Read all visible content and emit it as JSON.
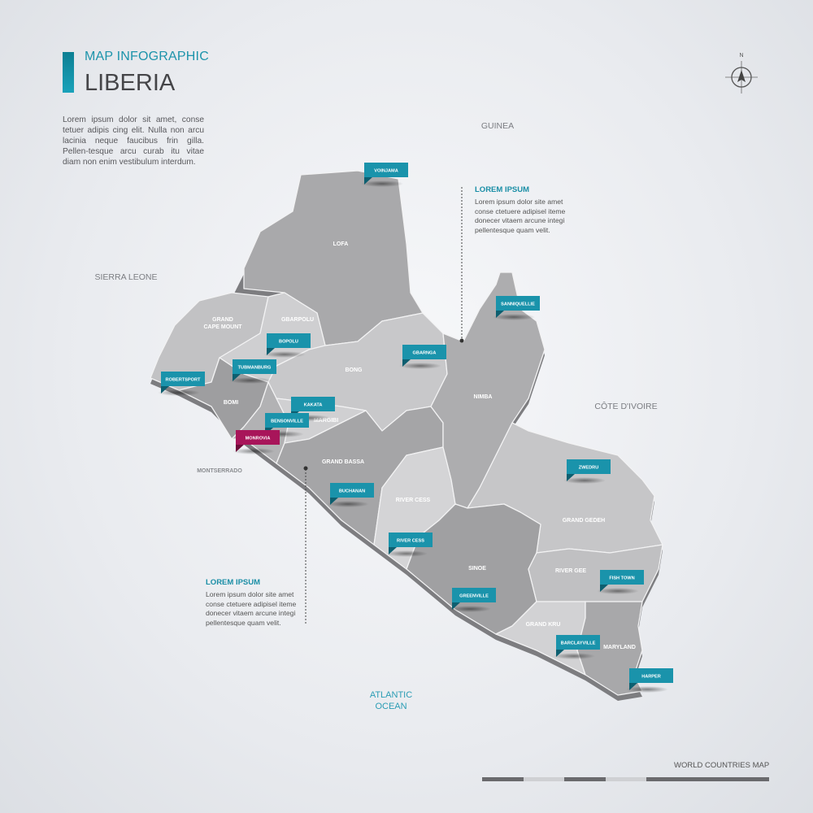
{
  "header": {
    "subtitle": "MAP INFOGRAPHIC",
    "title": "LIBERIA",
    "intro": "Lorem ipsum dolor sit amet, conse tetuer adipis cing elit. Nulla non arcu lacinia neque faucibus frin gilla. Pellen-tesque arcu curab itu vitae diam non enim vestibulum interdum."
  },
  "colors": {
    "accent": "#1d94ab",
    "pin": "#1a93ab",
    "capital_pin": "#a8155a",
    "map_gray": "#b4b4b6"
  },
  "compass": {
    "north_label": "N",
    "icon": "compass-icon"
  },
  "neighbors": {
    "guinea": "GUINEA",
    "sierra_leone": "SIERRA LEONE",
    "cote_divoire": "CÔTE D'IVOIRE",
    "ocean_line1": "ATLANTIC",
    "ocean_line2": "OCEAN"
  },
  "counties": {
    "lofa": "LOFA",
    "gbarpolu": "GBARPOLU",
    "gcm1": "GRAND",
    "gcm2": "CAPE MOUNT",
    "bong": "BONG",
    "bomi": "BOMI",
    "margibi": "MARGIBI",
    "nimba": "NIMBA",
    "grand_bassa": "GRAND BASSA",
    "river_cess": "RIVER CESS",
    "grand_gedeh": "GRAND GEDEH",
    "river_gee": "RIVER GEE",
    "sinoe": "SINOE",
    "grand_kru": "GRAND KRU",
    "maryland": "MARYLAND",
    "montserrado": "MONTSERRADO"
  },
  "cities": [
    {
      "name": "VOINJAMA",
      "capital": false
    },
    {
      "name": "SANNIQUELLIE",
      "capital": false
    },
    {
      "name": "GBARNGA",
      "capital": false
    },
    {
      "name": "BOPOLU",
      "capital": false
    },
    {
      "name": "TUBMANBURG",
      "capital": false
    },
    {
      "name": "ROBERTSPORT",
      "capital": false
    },
    {
      "name": "KAKATA",
      "capital": false
    },
    {
      "name": "BENSONVILLE",
      "capital": false
    },
    {
      "name": "MONROVIA",
      "capital": true
    },
    {
      "name": "ZWEDRU",
      "capital": false
    },
    {
      "name": "BUCHANAN",
      "capital": false
    },
    {
      "name": "RIVER CESS",
      "capital": false
    },
    {
      "name": "FISH TOWN",
      "capital": false
    },
    {
      "name": "GREENVILLE",
      "capital": false
    },
    {
      "name": "BARCLAYVILLE",
      "capital": false
    },
    {
      "name": "HARPER",
      "capital": false
    }
  ],
  "callouts": [
    {
      "title": "LOREM IPSUM",
      "text": "Lorem ipsum dolor site amet conse ctetuere adipisel iteme donecer vitaem arcune integi pellentesque quam velit."
    },
    {
      "title": "LOREM IPSUM",
      "text": "Lorem ipsum dolor site amet conse ctetuere adipisel iteme donecer vitaem arcune integi pellentesque quam velit."
    }
  ],
  "footer": {
    "label": "WORLD COUNTRIES MAP"
  }
}
